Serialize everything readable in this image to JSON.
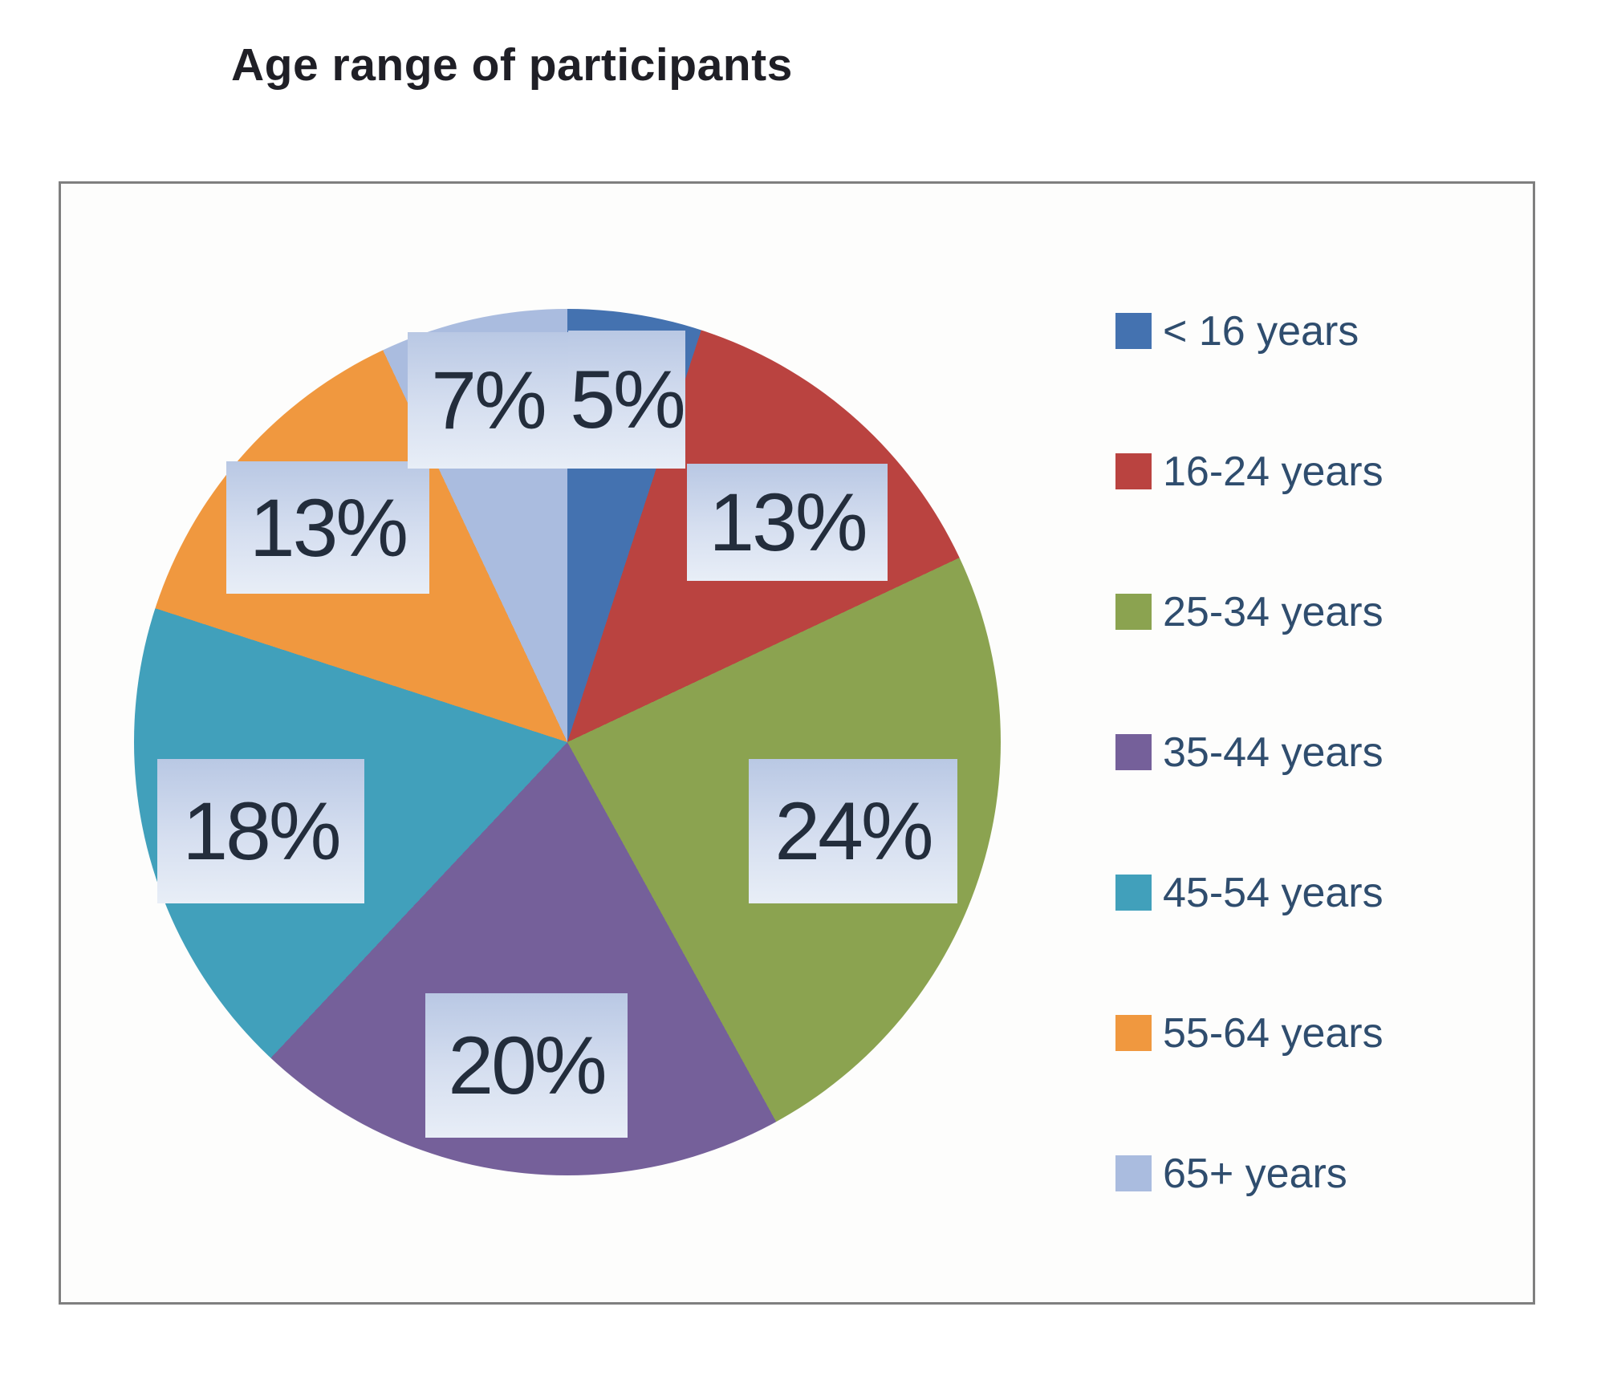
{
  "chart_data": {
    "type": "pie",
    "title": "Age range of participants",
    "categories": [
      "< 16 years",
      "16-24 years",
      "25-34 years",
      "35-44 years",
      "45-54 years",
      "55-64 years",
      "65+ years"
    ],
    "values": [
      5,
      13,
      24,
      20,
      18,
      13,
      7
    ],
    "unit": "%",
    "data_labels": [
      "5%",
      "13%",
      "24%",
      "20%",
      "18%",
      "13%",
      "7%"
    ],
    "colors": [
      "#4472b0",
      "#ba4340",
      "#8ba350",
      "#75609a",
      "#41a0bb",
      "#f0983f",
      "#aabcdf"
    ],
    "start_angle_deg": 0,
    "direction": "clockwise",
    "legend_position": "right",
    "label_text_color": "#232d3c",
    "label_box_color_top": "#b9c8e4",
    "label_box_color_bottom": "#e8eef7",
    "frame_border_color": "#7f7f7f"
  }
}
